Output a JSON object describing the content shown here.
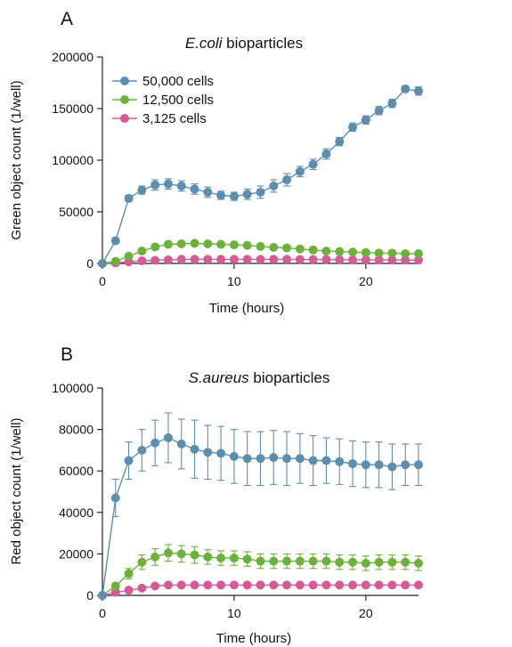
{
  "panels": [
    {
      "letter": "A",
      "title_italic": "E.coli",
      "title_rest": " bioparticles"
    },
    {
      "letter": "B",
      "title_italic": "S.aureus",
      "title_rest": " bioparticles"
    }
  ],
  "colors": {
    "blue": "#5b8fad",
    "green": "#6cb23a",
    "pink": "#d45a98"
  },
  "chart_data": [
    {
      "type": "line",
      "title": "E.coli bioparticles",
      "xlabel": "Time (hours)",
      "ylabel": "Green object count (1/well)",
      "xlim": [
        0,
        24
      ],
      "ylim": [
        0,
        200000
      ],
      "xticks": [
        0,
        10,
        20
      ],
      "xtick_labels": [
        "0",
        "10",
        "20"
      ],
      "yticks": [
        0,
        50000,
        100000,
        150000,
        200000
      ],
      "ytick_labels": [
        "0",
        "50000",
        "100000",
        "150000",
        "200000"
      ],
      "legend": "top-left",
      "x": [
        0,
        1,
        2,
        3,
        4,
        5,
        6,
        7,
        8,
        9,
        10,
        11,
        12,
        13,
        14,
        15,
        16,
        17,
        18,
        19,
        20,
        21,
        22,
        23,
        24
      ],
      "series": [
        {
          "name": "50,000 cells",
          "color": "#5b8fad",
          "values": [
            0,
            22000,
            63000,
            71000,
            76000,
            77000,
            75000,
            72000,
            69000,
            66000,
            65000,
            67000,
            69000,
            75000,
            81000,
            89000,
            96000,
            106000,
            118000,
            132000,
            139000,
            148000,
            155000,
            169000,
            167000
          ],
          "errors": [
            1000,
            2500,
            3000,
            4000,
            5000,
            5000,
            5000,
            5000,
            5000,
            4000,
            4000,
            5000,
            6000,
            6000,
            6000,
            5000,
            5000,
            5000,
            4000,
            4000,
            4000,
            4000,
            4000,
            3000,
            4000
          ]
        },
        {
          "name": "12,500 cells",
          "color": "#6cb23a",
          "values": [
            0,
            2000,
            7000,
            12000,
            16000,
            18500,
            19000,
            19500,
            19000,
            18500,
            18000,
            17500,
            16500,
            15500,
            15000,
            14000,
            13000,
            12000,
            11500,
            11000,
            10500,
            10000,
            10000,
            9500,
            9500
          ],
          "errors": [
            300,
            800,
            1500,
            1500,
            1500,
            1500,
            1500,
            1500,
            1500,
            1500,
            1500,
            1500,
            1500,
            1500,
            1500,
            1500,
            1200,
            1200,
            1200,
            1200,
            1200,
            1200,
            1200,
            1200,
            1200
          ]
        },
        {
          "name": "3,125 cells",
          "color": "#d45a98",
          "values": [
            0,
            500,
            1500,
            2500,
            3000,
            3500,
            4000,
            4000,
            4000,
            4000,
            4000,
            4000,
            4000,
            4000,
            4000,
            3800,
            3800,
            3800,
            3600,
            3500,
            3500,
            3400,
            3300,
            3200,
            3200
          ],
          "errors": [
            200,
            200,
            400,
            400,
            500,
            500,
            500,
            500,
            500,
            500,
            500,
            500,
            500,
            500,
            500,
            500,
            500,
            500,
            500,
            500,
            500,
            500,
            500,
            500,
            500
          ]
        }
      ]
    },
    {
      "type": "line",
      "title": "S.aureus bioparticles",
      "xlabel": "Time (hours)",
      "ylabel": "Red object count (1/well)",
      "xlim": [
        0,
        24
      ],
      "ylim": [
        0,
        100000
      ],
      "xticks": [
        0,
        10,
        20
      ],
      "xtick_labels": [
        "0",
        "10",
        "20"
      ],
      "yticks": [
        0,
        20000,
        40000,
        60000,
        80000,
        100000
      ],
      "ytick_labels": [
        "0",
        "20000",
        "40000",
        "60000",
        "80000",
        "100000"
      ],
      "x": [
        0,
        1,
        2,
        3,
        4,
        5,
        6,
        7,
        8,
        9,
        10,
        11,
        12,
        13,
        14,
        15,
        16,
        17,
        18,
        19,
        20,
        21,
        22,
        23,
        24
      ],
      "series": [
        {
          "color": "#5b8fad",
          "values": [
            0,
            47000,
            65000,
            70000,
            73500,
            76000,
            73000,
            70500,
            69000,
            68500,
            67000,
            66000,
            66000,
            66500,
            66000,
            66000,
            65000,
            65000,
            64500,
            63500,
            63000,
            63000,
            62000,
            63000,
            63000
          ],
          "errors": [
            500,
            9000,
            9000,
            10000,
            11000,
            12000,
            12000,
            14000,
            13000,
            13000,
            13000,
            13000,
            13000,
            13000,
            13000,
            12000,
            12000,
            11000,
            11000,
            11000,
            11000,
            11000,
            11000,
            10000,
            10000
          ]
        },
        {
          "color": "#6cb23a",
          "values": [
            0,
            4500,
            10500,
            16000,
            18500,
            20500,
            20000,
            19500,
            18500,
            18000,
            18000,
            17500,
            16500,
            16500,
            16500,
            16500,
            16500,
            16500,
            16000,
            16000,
            15500,
            16000,
            16000,
            16000,
            15500
          ],
          "errors": [
            300,
            1500,
            2500,
            3500,
            4000,
            4000,
            4000,
            4000,
            3500,
            3500,
            3500,
            3500,
            3500,
            3500,
            3500,
            3500,
            3500,
            3500,
            3500,
            3500,
            3500,
            3500,
            3500,
            3500,
            3500
          ]
        },
        {
          "color": "#d45a98",
          "values": [
            0,
            1500,
            2500,
            3500,
            4500,
            5000,
            5000,
            5000,
            5000,
            5000,
            5000,
            5000,
            5000,
            5000,
            5000,
            5000,
            5000,
            5000,
            5000,
            5000,
            5000,
            5000,
            5000,
            5000,
            5000
          ],
          "errors": [
            200,
            300,
            400,
            400,
            500,
            500,
            500,
            500,
            500,
            500,
            500,
            500,
            500,
            500,
            500,
            500,
            500,
            500,
            500,
            500,
            500,
            500,
            500,
            500,
            500
          ]
        }
      ]
    }
  ]
}
